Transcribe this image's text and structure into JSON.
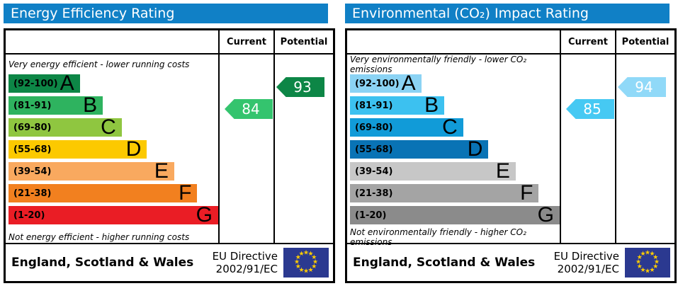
{
  "chart_data": [
    {
      "type": "bar",
      "title": "Energy Efficiency Rating",
      "header_bg": "#1080c6",
      "columns": [
        "Current",
        "Potential"
      ],
      "top_caption": "Very energy efficient - lower running costs",
      "bottom_caption": "Not energy efficient - higher running costs",
      "bands": [
        {
          "letter": "A",
          "range_label": "(92-100)",
          "min": 92,
          "max": 100,
          "color": "#0d8646",
          "bar_width": "34%"
        },
        {
          "letter": "B",
          "range_label": "(81-91)",
          "min": 81,
          "max": 91,
          "color": "#2eb35f",
          "bar_width": "45%"
        },
        {
          "letter": "C",
          "range_label": "(69-80)",
          "min": 69,
          "max": 80,
          "color": "#8fc640",
          "bar_width": "54%"
        },
        {
          "letter": "D",
          "range_label": "(55-68)",
          "min": 55,
          "max": 68,
          "color": "#fcc900",
          "bar_width": "66%"
        },
        {
          "letter": "E",
          "range_label": "(39-54)",
          "min": 39,
          "max": 54,
          "color": "#f9a95f",
          "bar_width": "79%"
        },
        {
          "letter": "F",
          "range_label": "(21-38)",
          "min": 21,
          "max": 38,
          "color": "#f2801f",
          "bar_width": "90%"
        },
        {
          "letter": "G",
          "range_label": "(1-20)",
          "min": 1,
          "max": 20,
          "color": "#ea1d25",
          "bar_width": "100%"
        }
      ],
      "current": {
        "value": 84,
        "band_index": 1,
        "color": "#34c46e"
      },
      "potential": {
        "value": 93,
        "band_index": 0,
        "color": "#0d8646"
      },
      "footer_region": "England, Scotland & Wales",
      "directive_line1": "EU Directive",
      "directive_line2": "2002/91/EC"
    },
    {
      "type": "bar",
      "title": "Environmental (CO₂) Impact Rating",
      "header_bg": "#1080c6",
      "columns": [
        "Current",
        "Potential"
      ],
      "top_caption": "Very environmentally friendly - lower CO₂ emissions",
      "bottom_caption": "Not environmentally friendly - higher CO₂ emissions",
      "bands": [
        {
          "letter": "A",
          "range_label": "(92-100)",
          "min": 92,
          "max": 100,
          "color": "#8bd3f4",
          "bar_width": "34%"
        },
        {
          "letter": "B",
          "range_label": "(81-91)",
          "min": 81,
          "max": 91,
          "color": "#3cc1f0",
          "bar_width": "45%"
        },
        {
          "letter": "C",
          "range_label": "(69-80)",
          "min": 69,
          "max": 80,
          "color": "#119bd8",
          "bar_width": "54%"
        },
        {
          "letter": "D",
          "range_label": "(55-68)",
          "min": 55,
          "max": 68,
          "color": "#0973b5",
          "bar_width": "66%"
        },
        {
          "letter": "E",
          "range_label": "(39-54)",
          "min": 39,
          "max": 54,
          "color": "#c7c7c7",
          "bar_width": "79%"
        },
        {
          "letter": "F",
          "range_label": "(21-38)",
          "min": 21,
          "max": 38,
          "color": "#a4a4a4",
          "bar_width": "90%"
        },
        {
          "letter": "G",
          "range_label": "(1-20)",
          "min": 1,
          "max": 20,
          "color": "#8b8b8b",
          "bar_width": "100%"
        }
      ],
      "current": {
        "value": 85,
        "band_index": 1,
        "color": "#46c9f3"
      },
      "potential": {
        "value": 94,
        "band_index": 0,
        "color": "#90d9f8"
      },
      "footer_region": "England, Scotland & Wales",
      "directive_line1": "EU Directive",
      "directive_line2": "2002/91/EC"
    }
  ],
  "eu_flag": {
    "bg": "#2b3990",
    "star_color": "#ffcc00"
  }
}
